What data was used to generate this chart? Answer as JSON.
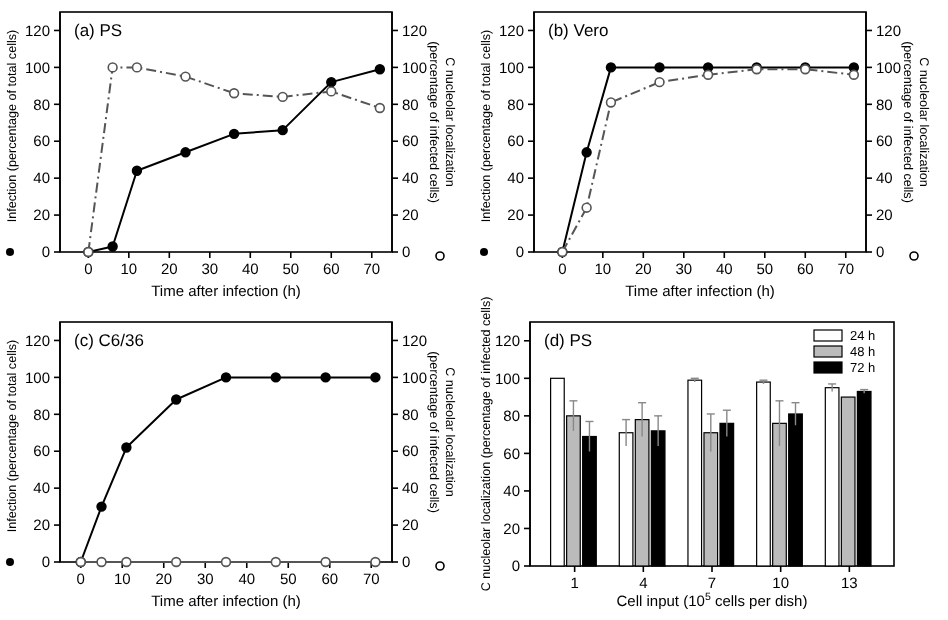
{
  "chart_data": [
    {
      "type": "line",
      "title": "(a) PS",
      "xlabel": "Time after infection (h)",
      "ylabel": "Infection (percentage of total cells)",
      "y2label": "C nucleolar localization (percentage of infected cells)",
      "x": [
        0,
        6,
        12,
        24,
        36,
        48,
        60,
        72
      ],
      "xlim": [
        -7,
        75
      ],
      "xticks": [
        0,
        10,
        20,
        30,
        40,
        50,
        60,
        70
      ],
      "ylim": [
        0,
        130
      ],
      "yticks": [
        0,
        20,
        40,
        60,
        80,
        100,
        120
      ],
      "y2lim": [
        0,
        130
      ],
      "y2ticks": [
        0,
        20,
        40,
        60,
        80,
        100,
        120
      ],
      "marker": "circle",
      "grid": false,
      "series": [
        {
          "color": "#000000",
          "values": [
            0,
            3,
            44,
            54,
            64,
            66,
            92,
            99
          ]
        },
        {
          "color": "#555555",
          "axis": "y2",
          "line_style": "dashed",
          "values": [
            0,
            100,
            100,
            95,
            86,
            84,
            87,
            78
          ]
        }
      ]
    },
    {
      "type": "line",
      "title": "(b) Vero",
      "xlabel": "Time after infection (h)",
      "ylabel": "Infection (percentage of total cells)",
      "y2label": "C nucleolar localization (percentage of infected cells)",
      "x": [
        0,
        6,
        12,
        24,
        36,
        48,
        60,
        72
      ],
      "xlim": [
        -7,
        75
      ],
      "xticks": [
        0,
        10,
        20,
        30,
        40,
        50,
        60,
        70
      ],
      "ylim": [
        0,
        130
      ],
      "yticks": [
        0,
        20,
        40,
        60,
        80,
        100,
        120
      ],
      "y2lim": [
        0,
        130
      ],
      "y2ticks": [
        0,
        20,
        40,
        60,
        80,
        100,
        120
      ],
      "marker": "circle",
      "grid": false,
      "series": [
        {
          "color": "#000000",
          "values": [
            0,
            54,
            100,
            100,
            100,
            100,
            100,
            100
          ]
        },
        {
          "color": "#555555",
          "axis": "y2",
          "line_style": "dashed",
          "values": [
            0,
            24,
            81,
            92,
            96,
            99,
            99,
            96
          ]
        }
      ]
    },
    {
      "type": "line",
      "title": "(c) C6/36",
      "xlabel": "Time after infection (h)",
      "ylabel": "Infection (percentage of total cells)",
      "y2label": "C nucleolar localization (percentage of infected cells)",
      "x": [
        0,
        5,
        11,
        23,
        35,
        47,
        59,
        71
      ],
      "xlim": [
        -5,
        75
      ],
      "xticks": [
        0,
        10,
        20,
        30,
        40,
        50,
        60,
        70
      ],
      "ylim": [
        0,
        130
      ],
      "yticks": [
        0,
        20,
        40,
        60,
        80,
        100,
        120
      ],
      "y2lim": [
        0,
        130
      ],
      "y2ticks": [
        0,
        20,
        40,
        60,
        80,
        100,
        120
      ],
      "marker": "circle",
      "grid": false,
      "series": [
        {
          "color": "#000000",
          "values": [
            0,
            30,
            62,
            88,
            100,
            100,
            100,
            100
          ]
        },
        {
          "color": "#555555",
          "axis": "y2",
          "values": [
            0,
            0,
            0,
            0,
            0,
            0,
            0,
            0
          ]
        }
      ]
    },
    {
      "type": "bar",
      "title": "(d) PS",
      "xlabel": "Cell input (10$^{5}$ cells per dish)",
      "ylabel": "C nucleolar localization (percentage of infected cells)",
      "categories": [
        "1",
        "4",
        "7",
        "10",
        "13"
      ],
      "ylim": [
        0,
        130
      ],
      "yticks": [
        0,
        20,
        40,
        60,
        80,
        100,
        120
      ],
      "legend": "top right",
      "grid": false,
      "series": [
        {
          "name": "24 h",
          "color": "#ffffff",
          "values": [
            100,
            71,
            99,
            98,
            95
          ],
          "errors": [
            null,
            7,
            1,
            1,
            2
          ]
        },
        {
          "name": "48 h",
          "color": "#bbbbbb",
          "values": [
            80,
            78,
            71,
            76,
            90
          ],
          "errors": [
            8,
            9,
            10,
            12,
            null
          ]
        },
        {
          "name": "72 h",
          "color": "#000000",
          "values": [
            69,
            72,
            76,
            81,
            93
          ],
          "errors": [
            8,
            8,
            7,
            6,
            1
          ]
        }
      ]
    }
  ]
}
